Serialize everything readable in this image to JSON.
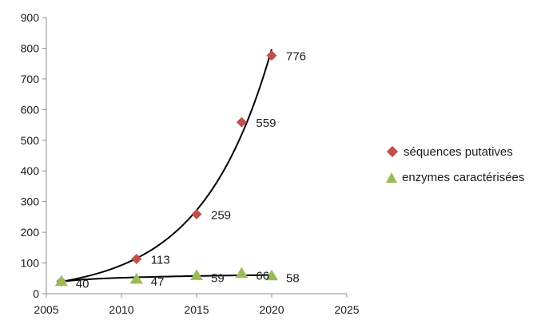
{
  "chart_data": {
    "type": "scatter",
    "x_ticks": [
      "2005",
      "2010",
      "2015",
      "2020",
      "2025"
    ],
    "y_ticks": [
      "0",
      "100",
      "200",
      "300",
      "400",
      "500",
      "600",
      "700",
      "800",
      "900"
    ],
    "xlim": [
      2005,
      2025
    ],
    "ylim": [
      0,
      900
    ],
    "grid": false,
    "legend_position": "right",
    "series": [
      {
        "name": "séquences putatives",
        "marker": "diamond",
        "color": "#c0504d",
        "x": [
          2006,
          2011,
          2015,
          2018,
          2020
        ],
        "y": [
          40,
          113,
          259,
          559,
          776
        ],
        "labels": [
          "",
          "113",
          "259",
          "559",
          "776"
        ],
        "trendline": "exponential"
      },
      {
        "name": "enzymes caractérisées",
        "marker": "triangle",
        "color": "#9bbb59",
        "x": [
          2006,
          2011,
          2015,
          2018,
          2020
        ],
        "y": [
          40,
          47,
          59,
          66,
          58
        ],
        "labels": [
          "40",
          "47",
          "59",
          "66",
          "58"
        ],
        "trendline": "logarithmic"
      }
    ]
  }
}
